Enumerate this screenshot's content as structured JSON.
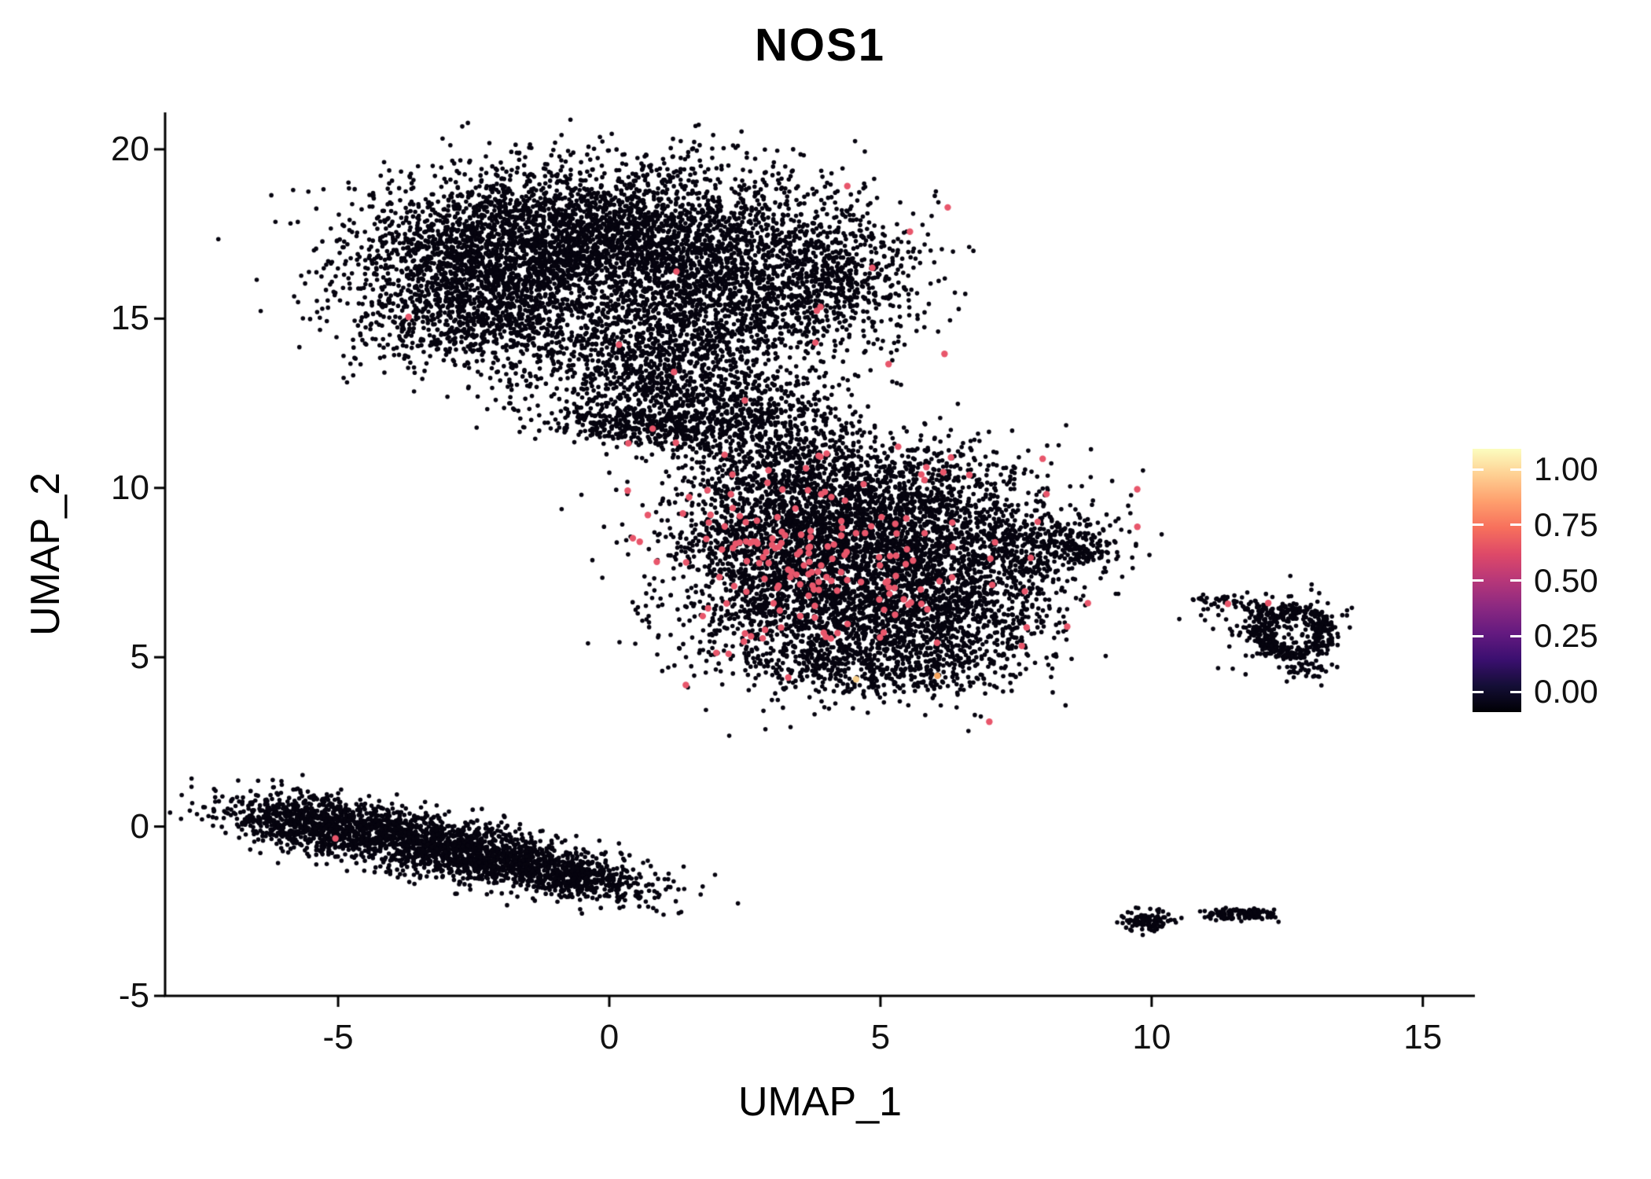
{
  "chart_data": {
    "type": "scatter",
    "title": "NOS1",
    "xlabel": "UMAP_1",
    "ylabel": "UMAP_2",
    "xlim": [
      -8.19,
      15.96
    ],
    "ylim": [
      -5,
      21.09
    ],
    "xticks": [
      {
        "label": "-5",
        "value": -5
      },
      {
        "label": "0",
        "value": 0
      },
      {
        "label": "5",
        "value": 5
      },
      {
        "label": "10",
        "value": 10
      },
      {
        "label": "15",
        "value": 15
      }
    ],
    "yticks": [
      {
        "label": "-5",
        "value": -5
      },
      {
        "label": "0",
        "value": 0
      },
      {
        "label": "5",
        "value": 5
      },
      {
        "label": "10",
        "value": 10
      },
      {
        "label": "15",
        "value": 15
      },
      {
        "label": "20",
        "value": 20
      }
    ],
    "grid": false,
    "background": "#ffffff",
    "point_color": "#06040f",
    "highlight_color": "#e8566b",
    "legend": {
      "position": "right",
      "ticks": [
        {
          "label": "1.00",
          "value": 1.0
        },
        {
          "label": "0.75",
          "value": 0.75
        },
        {
          "label": "0.50",
          "value": 0.5
        },
        {
          "label": "0.25",
          "value": 0.25
        },
        {
          "label": "0.00",
          "value": 0.0
        }
      ],
      "gradient": [
        {
          "value": 0.0,
          "color": "#000004"
        },
        {
          "value": 0.1,
          "color": "#140e36"
        },
        {
          "value": 0.2,
          "color": "#3b0f70"
        },
        {
          "value": 0.3,
          "color": "#641a80"
        },
        {
          "value": 0.4,
          "color": "#8c2981"
        },
        {
          "value": 0.5,
          "color": "#b73779"
        },
        {
          "value": 0.6,
          "color": "#de4968"
        },
        {
          "value": 0.7,
          "color": "#f7705c"
        },
        {
          "value": 0.8,
          "color": "#fe9f6d"
        },
        {
          "value": 0.9,
          "color": "#fecf92"
        },
        {
          "value": 1.0,
          "color": "#fcfdbf"
        }
      ]
    },
    "clusters": [
      {
        "cx": -2.2,
        "cy": 16.7,
        "sx": 1.35,
        "sy": 1.25,
        "n": 2200
      },
      {
        "cx": 0.3,
        "cy": 17.6,
        "sx": 1.5,
        "sy": 1.05,
        "n": 1700
      },
      {
        "cx": 2.2,
        "cy": 16.1,
        "sx": 1.3,
        "sy": 1.3,
        "n": 1400
      },
      {
        "cx": 4.2,
        "cy": 16.3,
        "sx": 0.85,
        "sy": 1.1,
        "n": 550
      },
      {
        "cx": -2.2,
        "cy": 14.8,
        "sx": 1.3,
        "sy": 0.6,
        "n": 450
      },
      {
        "cx": -0.1,
        "cy": 13.6,
        "sx": 1.1,
        "sy": 0.65,
        "n": 300
      },
      {
        "cx": 1.3,
        "cy": 14.5,
        "sx": 0.9,
        "sy": 0.8,
        "n": 350
      },
      {
        "cx": 0.7,
        "cy": 11.8,
        "sx": 1.0,
        "sy": 0.3,
        "rot": -8,
        "n": 420
      },
      {
        "cx": 1.6,
        "cy": 12.6,
        "sx": 1.0,
        "sy": 0.55,
        "n": 380
      },
      {
        "cx": 3.1,
        "cy": 11.9,
        "sx": 0.8,
        "sy": 0.5,
        "n": 220
      },
      {
        "cx": 3.3,
        "cy": 10.7,
        "sx": 0.9,
        "sy": 0.55,
        "n": 200
      },
      {
        "cx": 1.5,
        "cy": 13.3,
        "sx": 1.5,
        "sy": 0.7,
        "n": 180
      },
      {
        "cx": 3.4,
        "cy": 8.6,
        "sx": 1.2,
        "sy": 1.3,
        "n": 1800
      },
      {
        "cx": 5.6,
        "cy": 8.8,
        "sx": 1.4,
        "sy": 1.1,
        "n": 1500
      },
      {
        "cx": 4.3,
        "cy": 6.1,
        "sx": 1.4,
        "sy": 1.05,
        "n": 1400
      },
      {
        "cx": 6.4,
        "cy": 6.4,
        "sx": 1.0,
        "sy": 0.95,
        "n": 700
      },
      {
        "cx": 7.9,
        "cy": 8.3,
        "sx": 0.75,
        "sy": 0.55,
        "n": 300
      },
      {
        "cx": 5.2,
        "cy": 4.7,
        "sx": 1.2,
        "sy": 0.45,
        "n": 280
      },
      {
        "cx": 4.7,
        "cy": 10.5,
        "sx": 1.3,
        "sy": 0.55,
        "n": 240
      },
      {
        "cx": 8.6,
        "cy": 8.25,
        "sx": 0.3,
        "sy": 0.25,
        "n": 60
      },
      {
        "shape": "ring",
        "cx": 12.6,
        "cy": 5.75,
        "r_inner": 0.3,
        "r_outer": 0.78,
        "n": 380
      },
      {
        "cx": 12.35,
        "cy": 6.0,
        "sx": 0.6,
        "sy": 0.55,
        "n": 130
      },
      {
        "cx": 11.45,
        "cy": 6.6,
        "sx": 0.4,
        "sy": 0.13,
        "rot": -10,
        "n": 45
      },
      {
        "cx": 12.85,
        "cy": 4.7,
        "sx": 0.25,
        "sy": 0.2,
        "n": 40
      },
      {
        "cx": -3.1,
        "cy": -0.6,
        "sx": 1.75,
        "sy": 0.42,
        "rot": -18,
        "n": 2200
      },
      {
        "cx": -5.6,
        "cy": 0.1,
        "sx": 0.7,
        "sy": 0.38,
        "rot": -12,
        "n": 550
      },
      {
        "cx": -0.6,
        "cy": -1.5,
        "sx": 0.8,
        "sy": 0.3,
        "rot": -16,
        "n": 320
      },
      {
        "cx": 9.92,
        "cy": -2.78,
        "sx": 0.22,
        "sy": 0.16,
        "n": 110
      },
      {
        "cx": 11.35,
        "cy": -2.62,
        "sx": 0.22,
        "sy": 0.08,
        "rot": -6,
        "n": 55
      },
      {
        "cx": 11.88,
        "cy": -2.56,
        "sx": 0.3,
        "sy": 0.09,
        "rot": -6,
        "n": 70
      }
    ],
    "highlight_clusters": [
      {
        "cx": 3.0,
        "cy": 8.1,
        "sx": 1.05,
        "sy": 1.4,
        "n": 105
      },
      {
        "cx": 5.3,
        "cy": 7.5,
        "sx": 1.9,
        "sy": 1.6,
        "n": 75
      },
      {
        "cx": 3.5,
        "cy": 14.6,
        "sx": 1.3,
        "sy": 1.8,
        "n": 13
      }
    ],
    "outlier_points": [
      [
        6.85,
        3.25
      ],
      [
        9.05,
        8.3
      ],
      [
        10.55,
        -2.7
      ],
      [
        0.0,
        10.45
      ],
      [
        -3.6,
        12.85
      ],
      [
        12.95,
        7.15
      ],
      [
        10.95,
        6.85
      ],
      [
        11.1,
        6.55
      ],
      [
        8.9,
        9.5
      ],
      [
        9.35,
        7.9
      ],
      [
        -4.9,
        13.9
      ],
      [
        2.2,
        9.9
      ],
      [
        0.5,
        10.9
      ],
      [
        -0.6,
        12.4
      ]
    ],
    "highlight_points": [
      {
        "x": 12.15,
        "y": 6.6
      },
      {
        "x": -5.05,
        "y": -0.35
      },
      {
        "x": 4.85,
        "y": 16.5
      },
      {
        "x": -3.7,
        "y": 15.05
      },
      {
        "x": 0.8,
        "y": 11.75
      },
      {
        "x": 6.3,
        "y": 10.9
      },
      {
        "x": 7.9,
        "y": 9.0
      },
      {
        "x": 2.2,
        "y": 5.1
      },
      {
        "x": 3.3,
        "y": 4.4
      },
      {
        "x": 4.55,
        "y": 4.35,
        "color": "#f8cf8a"
      },
      {
        "x": 6.05,
        "y": 4.45,
        "color": "#f7a45c"
      }
    ]
  }
}
